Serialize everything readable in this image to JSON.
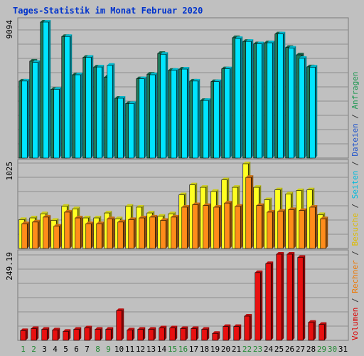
{
  "title": "Tages-Statistik im Monat Februar 2020",
  "right_legend": {
    "parts": [
      {
        "text": "Volumen",
        "color": "#dd0000"
      },
      {
        "text": " / ",
        "color": "#333333"
      },
      {
        "text": "Rechner",
        "color": "#ee7700"
      },
      {
        "text": " / ",
        "color": "#333333"
      },
      {
        "text": "Besuche",
        "color": "#ddbb00"
      },
      {
        "text": " / ",
        "color": "#333333"
      },
      {
        "text": "Seiten",
        "color": "#00bbdd"
      },
      {
        "text": " / ",
        "color": "#333333"
      },
      {
        "text": "Dateien",
        "color": "#2255cc"
      },
      {
        "text": " / ",
        "color": "#333333"
      },
      {
        "text": "Anfragen",
        "color": "#229955"
      }
    ]
  },
  "colors": {
    "background": "#c0c0c0",
    "title": "#0033cc",
    "weekend_day": "#228833",
    "weekday": "#000000",
    "anfragen": "#1f7a5a",
    "seiten": "#00e5ff",
    "besuche": "#ffff22",
    "rechner": "#ff8c1a",
    "volumen": "#e81010"
  },
  "chart_data": [
    {
      "type": "bar",
      "panel": "top",
      "ymax_label": "9094",
      "ylim": [
        0,
        9094
      ],
      "x": [
        "1",
        "2",
        "3",
        "4",
        "5",
        "6",
        "7",
        "8",
        "9",
        "10",
        "11",
        "12",
        "13",
        "14",
        "15",
        "16",
        "17",
        "18",
        "19",
        "20",
        "21",
        "22",
        "23",
        "24",
        "25",
        "26",
        "27",
        "28",
        "29",
        "30",
        "31"
      ],
      "weekend_days": [
        "1",
        "2",
        "8",
        "9",
        "15",
        "16",
        "22",
        "23",
        "29",
        "30"
      ],
      "series": [
        {
          "name": "Anfragen",
          "values": [
            5150,
            6480,
            9094,
            4600,
            8130,
            5570,
            6740,
            6090,
            5410,
            4000,
            3650,
            5300,
            5610,
            7000,
            5870,
            5950,
            5150,
            3850,
            5110,
            5970,
            8050,
            7800,
            7640,
            7710,
            8300,
            7400,
            6900,
            6100,
            0,
            0,
            0
          ]
        },
        {
          "name": "Seiten",
          "values": [
            5150,
            6400,
            9094,
            4600,
            8130,
            5570,
            6740,
            6090,
            6200,
            4000,
            3650,
            5300,
            5570,
            6940,
            5870,
            5950,
            5150,
            3850,
            5110,
            5970,
            7990,
            7800,
            7640,
            7710,
            8300,
            7350,
            6670,
            6080,
            0,
            0,
            0
          ]
        }
      ]
    },
    {
      "type": "bar",
      "panel": "middle",
      "ymax_label": "1025",
      "ylim": [
        0,
        1025
      ],
      "x": [
        "1",
        "2",
        "3",
        "4",
        "5",
        "6",
        "7",
        "8",
        "9",
        "10",
        "11",
        "12",
        "13",
        "14",
        "15",
        "16",
        "17",
        "18",
        "19",
        "20",
        "21",
        "22",
        "23",
        "24",
        "25",
        "26",
        "27",
        "28",
        "29",
        "30",
        "31"
      ],
      "series": [
        {
          "name": "Besuche",
          "values": [
            350,
            370,
            420,
            340,
            510,
            480,
            370,
            370,
            430,
            360,
            510,
            500,
            430,
            390,
            420,
            650,
            770,
            740,
            690,
            830,
            740,
            1025,
            740,
            590,
            710,
            660,
            700,
            710,
            410,
            0,
            0
          ]
        },
        {
          "name": "Rechner",
          "values": [
            300,
            320,
            380,
            270,
            440,
            370,
            300,
            300,
            360,
            320,
            350,
            370,
            380,
            340,
            380,
            500,
            530,
            520,
            500,
            550,
            510,
            860,
            520,
            440,
            450,
            470,
            460,
            500,
            360,
            0,
            0
          ]
        }
      ]
    },
    {
      "type": "bar",
      "panel": "bottom",
      "ymax_label": "249.19",
      "ylim": [
        0,
        249.19
      ],
      "x": [
        "1",
        "2",
        "3",
        "4",
        "5",
        "6",
        "7",
        "8",
        "9",
        "10",
        "11",
        "12",
        "13",
        "14",
        "15",
        "16",
        "17",
        "18",
        "19",
        "20",
        "21",
        "22",
        "23",
        "24",
        "25",
        "26",
        "27",
        "28",
        "29",
        "30",
        "31"
      ],
      "series": [
        {
          "name": "Volumen",
          "values": [
            28,
            34,
            32,
            30,
            26,
            32,
            36,
            32,
            32,
            86,
            30,
            32,
            32,
            36,
            36,
            34,
            34,
            32,
            20,
            40,
            40,
            70,
            196,
            222,
            249.19,
            249.19,
            240,
            52,
            46,
            0,
            0
          ]
        }
      ]
    }
  ]
}
